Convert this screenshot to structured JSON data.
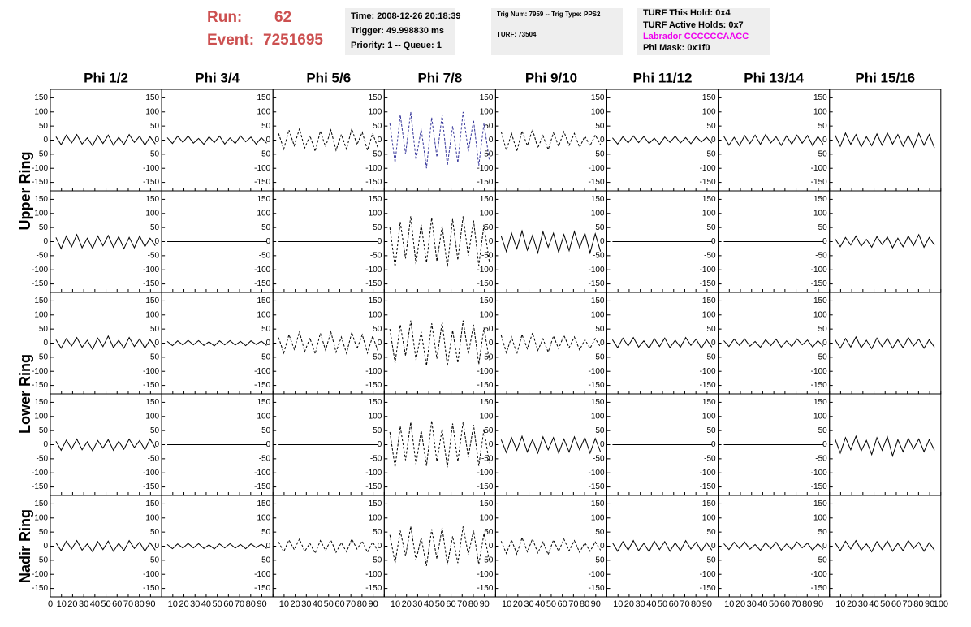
{
  "header": {
    "run_label": "Run:",
    "run": "62",
    "event_label": "Event:",
    "event": "7251695",
    "time": "Time: 2008-12-26 20:18:39",
    "trigger": "Trigger: 49.998830 ms",
    "priority": "Priority: 1 -- Queue: 1",
    "trig_num": "Trig Num: 7959 -- Trig Type: PPS2",
    "turf": "TURF: 73504",
    "this_hold": "TURF This Hold: 0x4",
    "active_holds": "TURF Active Holds: 0x7",
    "labrador": "Labrador CCCCCCAACC",
    "phi_mask": "Phi Mask: 0x1f0"
  },
  "columns": [
    "Phi 1/2",
    "Phi 3/4",
    "Phi 5/6",
    "Phi 7/8",
    "Phi 9/10",
    "Phi 11/12",
    "Phi 13/14",
    "Phi 15/16"
  ],
  "rows": [
    "Upper Ring",
    "Lower Ring",
    "Nadir Ring"
  ],
  "xlim": [
    0,
    100
  ],
  "xticks": [
    0,
    10,
    20,
    30,
    40,
    50,
    60,
    70,
    80,
    90,
    100
  ],
  "ylim": [
    -180,
    180
  ],
  "yticks": [
    -150,
    -100,
    -50,
    0,
    50,
    100,
    150
  ],
  "sample_x": [
    5,
    9.7,
    14.4,
    19.1,
    23.8,
    28.5,
    33.2,
    37.9,
    42.6,
    47.3,
    52,
    56.7,
    61.4,
    66.1,
    70.8,
    75.5,
    80.2,
    84.9,
    89.6,
    94.3
  ],
  "panels": [
    [
      {
        "color": "#000000",
        "dashed": false,
        "values": [
          12,
          -16,
          18,
          -10,
          20,
          -14,
          8,
          -20,
          16,
          -12,
          18,
          -18,
          10,
          -16,
          20,
          -8,
          14,
          -18,
          12,
          -14
        ]
      },
      {
        "color": "#000000",
        "dashed": false,
        "values": [
          9,
          -12,
          14,
          -8,
          15,
          -11,
          6,
          -15,
          12,
          -9,
          14,
          -14,
          8,
          -12,
          15,
          -6,
          11,
          -14,
          9,
          -11
        ]
      },
      {
        "color": "#000000",
        "dashed": true,
        "values": [
          24,
          -32,
          36,
          -20,
          40,
          -28,
          16,
          -40,
          32,
          -24,
          36,
          -36,
          20,
          -32,
          40,
          -16,
          28,
          -36,
          24,
          -28
        ]
      },
      {
        "color": "#333399",
        "dashed": true,
        "values": [
          60,
          -80,
          90,
          -50,
          100,
          -70,
          40,
          -100,
          80,
          -60,
          90,
          -90,
          50,
          -80,
          100,
          -40,
          70,
          -90,
          60,
          -70
        ]
      },
      {
        "color": "#000000",
        "dashed": true,
        "values": [
          30,
          -36,
          24,
          -40,
          32,
          -20,
          38,
          -28,
          16,
          -34,
          26,
          -22,
          30,
          -18,
          24,
          -26,
          14,
          -20,
          18,
          -16
        ]
      },
      {
        "color": "#000000",
        "dashed": false,
        "values": [
          8,
          -14,
          12,
          -10,
          15,
          -9,
          13,
          -12,
          7,
          -15,
          11,
          -8,
          14,
          -10,
          9,
          -13,
          12,
          -7,
          10,
          -11
        ]
      },
      {
        "color": "#000000",
        "dashed": false,
        "values": [
          14,
          -18,
          10,
          -20,
          16,
          -12,
          18,
          -15,
          20,
          -10,
          12,
          -19,
          15,
          -14,
          18,
          -11,
          16,
          -20,
          13,
          -15
        ]
      },
      {
        "color": "#000000",
        "dashed": false,
        "values": [
          18,
          -22,
          25,
          -15,
          20,
          -24,
          12,
          -20,
          22,
          -18,
          25,
          -14,
          20,
          -22,
          16,
          -25,
          24,
          -18,
          20,
          -28
        ]
      }
    ],
    [
      {
        "color": "#000000",
        "dashed": false,
        "values": [
          15,
          -25,
          20,
          -18,
          25,
          -22,
          12,
          -24,
          20,
          -15,
          22,
          -20,
          18,
          -25,
          15,
          -22,
          20,
          -18,
          12,
          -15
        ]
      },
      {
        "color": "#000000",
        "dashed": false,
        "values": [
          0,
          0,
          0,
          0,
          0,
          0,
          0,
          0,
          0,
          0,
          0,
          0,
          0,
          0,
          0,
          0,
          0,
          0,
          0,
          0
        ]
      },
      {
        "color": "#000000",
        "dashed": false,
        "values": [
          0,
          0,
          0,
          0,
          0,
          0,
          0,
          0,
          0,
          0,
          0,
          0,
          0,
          0,
          0,
          0,
          0,
          0,
          0,
          0
        ]
      },
      {
        "color": "#000000",
        "dashed": true,
        "values": [
          50,
          -90,
          70,
          -60,
          90,
          -80,
          60,
          -75,
          85,
          -70,
          55,
          -90,
          80,
          -65,
          90,
          -50,
          75,
          -85,
          60,
          -70
        ]
      },
      {
        "color": "#000000",
        "dashed": false,
        "values": [
          20,
          -35,
          30,
          -25,
          38,
          -30,
          22,
          -40,
          35,
          -20,
          30,
          -38,
          25,
          -32,
          36,
          -22,
          30,
          -40,
          28,
          -35
        ]
      },
      {
        "color": "#000000",
        "dashed": false,
        "values": [
          0,
          0,
          0,
          0,
          0,
          0,
          0,
          0,
          0,
          0,
          0,
          0,
          0,
          0,
          0,
          0,
          0,
          0,
          0,
          0
        ]
      },
      {
        "color": "#000000",
        "dashed": false,
        "values": [
          0,
          0,
          0,
          0,
          0,
          0,
          0,
          0,
          0,
          0,
          0,
          0,
          0,
          0,
          0,
          0,
          0,
          0,
          0,
          0
        ]
      },
      {
        "color": "#000000",
        "dashed": false,
        "values": [
          10,
          -18,
          15,
          -12,
          20,
          -16,
          8,
          -20,
          18,
          -10,
          16,
          -22,
          12,
          -18,
          20,
          -14,
          25,
          -20,
          15,
          -12
        ]
      }
    ],
    [
      {
        "color": "#000000",
        "dashed": false,
        "values": [
          12,
          -18,
          16,
          -10,
          20,
          -15,
          10,
          -22,
          18,
          -12,
          25,
          -16,
          10,
          -18,
          20,
          -12,
          15,
          -18,
          12,
          -14
        ]
      },
      {
        "color": "#000000",
        "dashed": false,
        "values": [
          6,
          -9,
          8,
          -7,
          10,
          -6,
          9,
          -8,
          5,
          -10,
          8,
          -6,
          9,
          -7,
          6,
          -9,
          8,
          -5,
          7,
          -8
        ]
      },
      {
        "color": "#000000",
        "dashed": true,
        "values": [
          20,
          -35,
          30,
          -22,
          40,
          -30,
          18,
          -38,
          35,
          -25,
          40,
          -32,
          22,
          -36,
          38,
          -20,
          30,
          -35,
          25,
          -28
        ]
      },
      {
        "color": "#000000",
        "dashed": true,
        "values": [
          50,
          -70,
          65,
          -45,
          80,
          -60,
          40,
          -80,
          70,
          -55,
          75,
          -80,
          45,
          -70,
          80,
          -40,
          65,
          -75,
          55,
          -60
        ]
      },
      {
        "color": "#000000",
        "dashed": true,
        "values": [
          28,
          -34,
          22,
          -38,
          30,
          -20,
          36,
          -26,
          15,
          -32,
          25,
          -20,
          28,
          -16,
          22,
          -24,
          12,
          -18,
          16,
          -14
        ]
      },
      {
        "color": "#000000",
        "dashed": false,
        "values": [
          12,
          -16,
          18,
          -10,
          20,
          -14,
          8,
          -18,
          16,
          -12,
          18,
          -16,
          10,
          -14,
          20,
          -8,
          14,
          -18,
          12,
          -14
        ]
      },
      {
        "color": "#000000",
        "dashed": false,
        "values": [
          9,
          -12,
          14,
          -8,
          15,
          -11,
          6,
          -15,
          12,
          -9,
          14,
          -14,
          8,
          -12,
          15,
          -6,
          11,
          -14,
          9,
          -11
        ]
      },
      {
        "color": "#000000",
        "dashed": false,
        "values": [
          12,
          -18,
          16,
          -14,
          22,
          -16,
          10,
          -20,
          18,
          -12,
          16,
          -18,
          12,
          -16,
          20,
          -10,
          14,
          -18,
          12,
          -14
        ]
      }
    ],
    [
      {
        "color": "#000000",
        "dashed": false,
        "values": [
          12,
          -20,
          16,
          -15,
          20,
          -18,
          10,
          -22,
          15,
          -12,
          18,
          -20,
          12,
          -16,
          20,
          -10,
          15,
          -18,
          20,
          -12
        ]
      },
      {
        "color": "#000000",
        "dashed": false,
        "values": [
          0,
          0,
          0,
          0,
          0,
          0,
          0,
          0,
          0,
          0,
          0,
          0,
          0,
          0,
          0,
          0,
          0,
          0,
          0,
          0
        ]
      },
      {
        "color": "#000000",
        "dashed": false,
        "values": [
          0,
          0,
          0,
          0,
          0,
          0,
          0,
          0,
          0,
          0,
          0,
          0,
          0,
          0,
          0,
          0,
          0,
          0,
          0,
          0
        ]
      },
      {
        "color": "#000000",
        "dashed": true,
        "values": [
          45,
          -80,
          65,
          -55,
          80,
          -70,
          50,
          -75,
          85,
          -60,
          55,
          -80,
          75,
          -60,
          80,
          -45,
          70,
          -75,
          55,
          -65
        ]
      },
      {
        "color": "#000000",
        "dashed": false,
        "values": [
          18,
          -28,
          25,
          -20,
          30,
          -26,
          18,
          -30,
          28,
          -18,
          25,
          -30,
          20,
          -26,
          28,
          -18,
          25,
          -30,
          22,
          -26
        ]
      },
      {
        "color": "#000000",
        "dashed": false,
        "values": [
          0,
          0,
          0,
          0,
          0,
          0,
          0,
          0,
          0,
          0,
          0,
          0,
          0,
          0,
          0,
          0,
          0,
          0,
          0,
          0
        ]
      },
      {
        "color": "#000000",
        "dashed": false,
        "values": [
          0,
          0,
          0,
          0,
          0,
          0,
          0,
          0,
          0,
          0,
          0,
          0,
          0,
          0,
          0,
          0,
          0,
          0,
          0,
          0
        ]
      },
      {
        "color": "#000000",
        "dashed": false,
        "values": [
          20,
          -30,
          25,
          -18,
          30,
          -22,
          15,
          -35,
          25,
          -20,
          28,
          -40,
          18,
          -25,
          22,
          -15,
          20,
          -25,
          18,
          -20
        ]
      }
    ],
    [
      {
        "color": "#000000",
        "dashed": false,
        "values": [
          12,
          -16,
          18,
          -10,
          20,
          -14,
          8,
          -20,
          16,
          -12,
          18,
          -18,
          10,
          -16,
          20,
          -8,
          14,
          -18,
          12,
          -14
        ]
      },
      {
        "color": "#000000",
        "dashed": false,
        "values": [
          6,
          -9,
          8,
          -7,
          10,
          -6,
          9,
          -8,
          5,
          -10,
          8,
          -6,
          9,
          -7,
          6,
          -9,
          8,
          -5,
          7,
          -8
        ]
      },
      {
        "color": "#000000",
        "dashed": true,
        "values": [
          15,
          -20,
          22,
          -12,
          25,
          -18,
          10,
          -25,
          20,
          -15,
          22,
          -22,
          12,
          -20,
          25,
          -10,
          18,
          -22,
          15,
          -18
        ]
      },
      {
        "color": "#000000",
        "dashed": true,
        "values": [
          40,
          -60,
          55,
          -35,
          70,
          -50,
          30,
          -70,
          60,
          -45,
          65,
          -65,
          35,
          -60,
          70,
          -30,
          55,
          -65,
          45,
          -50
        ]
      },
      {
        "color": "#000000",
        "dashed": true,
        "values": [
          18,
          -26,
          22,
          -28,
          30,
          -20,
          26,
          -24,
          15,
          -30,
          22,
          -18,
          25,
          -16,
          20,
          -22,
          12,
          -18,
          15,
          -14
        ]
      },
      {
        "color": "#000000",
        "dashed": false,
        "values": [
          12,
          -18,
          16,
          -14,
          20,
          -16,
          10,
          -20,
          18,
          -12,
          16,
          -18,
          12,
          -16,
          20,
          -10,
          14,
          -18,
          12,
          -14
        ]
      },
      {
        "color": "#000000",
        "dashed": false,
        "values": [
          9,
          -12,
          14,
          -8,
          15,
          -11,
          6,
          -15,
          12,
          -9,
          14,
          -14,
          8,
          -12,
          15,
          -6,
          11,
          -14,
          9,
          -11
        ]
      },
      {
        "color": "#000000",
        "dashed": false,
        "values": [
          12,
          -16,
          18,
          -10,
          20,
          -14,
          8,
          -20,
          16,
          -12,
          18,
          -18,
          10,
          -16,
          20,
          -8,
          14,
          -18,
          12,
          -14
        ]
      }
    ]
  ]
}
